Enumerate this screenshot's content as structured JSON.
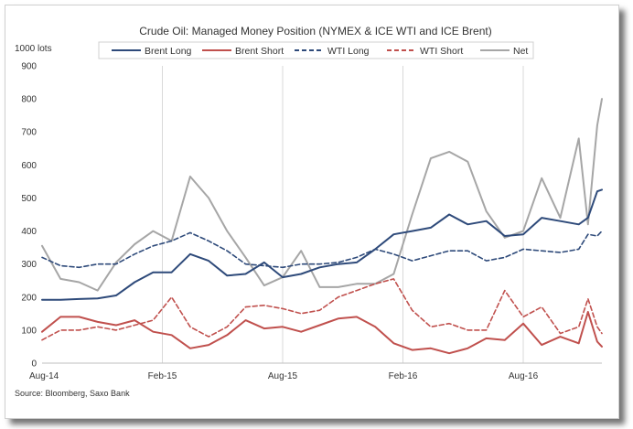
{
  "chart_data": {
    "type": "line",
    "title": "Crude Oil: Managed Money Position (NYMEX & ICE WTI and ICE Brent)",
    "unit_label": "1000 lots",
    "source": "Source: Bloomberg, Saxo Bank",
    "ylim": [
      0,
      900
    ],
    "yticks": [
      0,
      100,
      200,
      300,
      400,
      500,
      600,
      700,
      800,
      900
    ],
    "xticks": [
      {
        "label": "Aug-14",
        "week": 0
      },
      {
        "label": "Feb-15",
        "week": 26
      },
      {
        "label": "Aug-15",
        "week": 52
      },
      {
        "label": "Feb-16",
        "week": 78
      },
      {
        "label": "Aug-16",
        "week": 104
      }
    ],
    "x_range_weeks": [
      0,
      121
    ],
    "grid": {
      "vertical": true,
      "horizontal": false
    },
    "legend_position": "top",
    "x": [
      0,
      4,
      8,
      12,
      16,
      20,
      24,
      28,
      32,
      36,
      40,
      44,
      48,
      52,
      56,
      60,
      64,
      68,
      72,
      76,
      80,
      84,
      88,
      92,
      96,
      100,
      104,
      108,
      112,
      116,
      118,
      120,
      121
    ],
    "series": [
      {
        "name": "Brent Long",
        "color": "#2e4a7a",
        "style": "solid",
        "values": [
          192,
          192,
          194,
          196,
          205,
          245,
          275,
          275,
          330,
          310,
          265,
          270,
          305,
          260,
          270,
          290,
          300,
          305,
          345,
          390,
          400,
          410,
          450,
          420,
          430,
          385,
          390,
          440,
          430,
          420,
          440,
          520,
          525
        ]
      },
      {
        "name": "Brent Short",
        "color": "#c0504d",
        "style": "solid",
        "values": [
          95,
          140,
          140,
          125,
          115,
          130,
          95,
          85,
          45,
          55,
          85,
          130,
          105,
          110,
          95,
          115,
          135,
          140,
          110,
          60,
          40,
          45,
          30,
          45,
          75,
          70,
          120,
          55,
          80,
          60,
          155,
          65,
          50
        ]
      },
      {
        "name": "WTI Long",
        "color": "#2e4a7a",
        "style": "dashed",
        "values": [
          320,
          295,
          290,
          300,
          300,
          330,
          355,
          370,
          395,
          370,
          340,
          300,
          295,
          290,
          300,
          300,
          305,
          320,
          345,
          330,
          310,
          325,
          340,
          340,
          310,
          320,
          345,
          340,
          335,
          345,
          390,
          385,
          400
        ]
      },
      {
        "name": "WTI Short",
        "color": "#c0504d",
        "style": "dashed",
        "values": [
          70,
          100,
          100,
          110,
          100,
          115,
          130,
          200,
          110,
          80,
          110,
          170,
          175,
          165,
          150,
          160,
          200,
          220,
          240,
          255,
          160,
          110,
          120,
          100,
          100,
          220,
          140,
          170,
          90,
          110,
          195,
          110,
          90
        ]
      },
      {
        "name": "Net",
        "color": "#a6a6a6",
        "style": "solid",
        "values": [
          355,
          255,
          245,
          220,
          305,
          360,
          400,
          370,
          565,
          500,
          400,
          320,
          235,
          260,
          340,
          230,
          230,
          240,
          240,
          270,
          450,
          620,
          640,
          610,
          460,
          380,
          400,
          560,
          440,
          680,
          420,
          720,
          800
        ]
      }
    ]
  }
}
